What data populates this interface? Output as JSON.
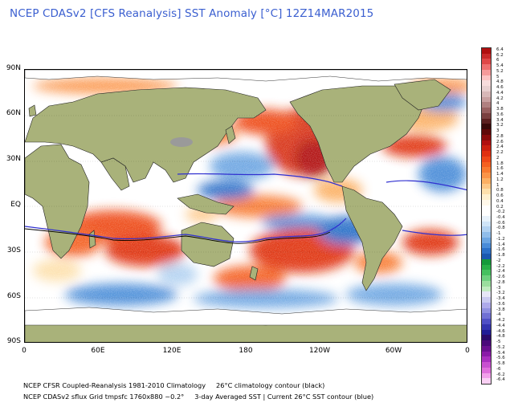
{
  "title": "NCEP CDASv2 [CFS Reanalysis] SST Anomaly [°C] 12Z14MAR2015",
  "axes": {
    "y_labels": [
      "90N",
      "60N",
      "30N",
      "EQ",
      "30S",
      "60S",
      "90S"
    ],
    "x_labels": [
      "0",
      "60E",
      "120E",
      "180",
      "120W",
      "60W",
      "0"
    ]
  },
  "colorbar": {
    "labels": [
      "6.4",
      "6.2",
      "6",
      "5.4",
      "5.2",
      "5",
      "4.8",
      "4.6",
      "4.4",
      "4.2",
      "4",
      "3.8",
      "3.6",
      "3.4",
      "3.2",
      "3",
      "2.8",
      "2.6",
      "2.4",
      "2.2",
      "2",
      "1.8",
      "1.6",
      "1.4",
      "1.2",
      "1",
      "0.8",
      "0.6",
      "0.4",
      "0.2",
      "-0.2",
      "-0.4",
      "-0.6",
      "-0.8",
      "-1",
      "-1.2",
      "-1.4",
      "-1.6",
      "-1.8",
      "-2",
      "-2.2",
      "-2.4",
      "-2.6",
      "-2.8",
      "-3",
      "-3.2",
      "-3.4",
      "-3.6",
      "-3.8",
      "-4",
      "-4.2",
      "-4.4",
      "-4.6",
      "-4.8",
      "-5",
      "-5.2",
      "-5.4",
      "-5.6",
      "-5.8",
      "-6",
      "-6.2",
      "-6.4"
    ],
    "colors": [
      "#b01010",
      "#c92a2a",
      "#e04848",
      "#ef7070",
      "#f59a9a",
      "#fbc3c3",
      "#f7dcdc",
      "#e8d0d0",
      "#d8b8b8",
      "#c8a0a0",
      "#b08080",
      "#986060",
      "#7a4040",
      "#5c2020",
      "#3a0a0a",
      "#600808",
      "#8a0a0a",
      "#b01010",
      "#cc2010",
      "#e03010",
      "#ee4818",
      "#f46020",
      "#f87a30",
      "#fb9448",
      "#fcb064",
      "#fdc888",
      "#fde0ac",
      "#fef0d0",
      "#fff8ea",
      "#ffffff",
      "#ffffff",
      "#e8f2fb",
      "#cfe4f7",
      "#b2d2f1",
      "#90bdea",
      "#6da6e2",
      "#4a8cd8",
      "#2c70c8",
      "#1a58b0",
      "#149a3a",
      "#28b048",
      "#46c060",
      "#6ed080",
      "#9ade9e",
      "#c0ebc0",
      "#e6e6f6",
      "#cacaf0",
      "#aeaaea",
      "#9090e0",
      "#7070d4",
      "#5050c6",
      "#3434b0",
      "#201c96",
      "#2a0a6a",
      "#4a0a7a",
      "#6a1090",
      "#8a1aa8",
      "#aa30c0",
      "#c850d0",
      "#e070dc",
      "#f2a0ea",
      "#fad0f4"
    ]
  },
  "footer": {
    "line1": "NCEP CFSR Coupled-Reanalysis 1981-2010 Climatology     26°C climatology contour (black)",
    "line2": "NCEP CDASv2 sflux Grid tmpsfc 1760x880 ~0.2°     3-day Averaged SST | Current 26°C SST contour (blue)"
  },
  "colors": {
    "ocean_base": "#ffffff",
    "land": "#a9b27a",
    "ice": "#ffffff",
    "title": "#3b5fd0",
    "contour_current": "#3030d0",
    "contour_climo": "#000000"
  }
}
